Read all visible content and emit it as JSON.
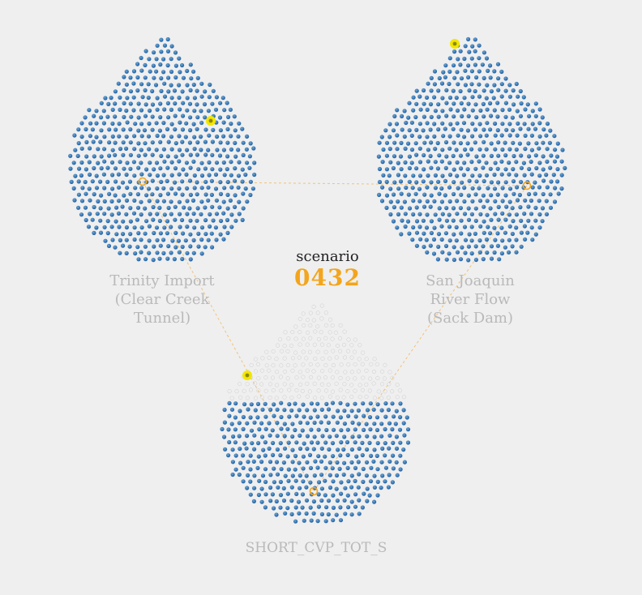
{
  "scenario": {
    "label": "scenario",
    "number": "0432"
  },
  "drops": [
    {
      "id": "trinity",
      "label": "Trinity Import\n(Clear Creek\nTunnel)",
      "filled_fraction": 1.0
    },
    {
      "id": "san-joaquin",
      "label": "San Joaquin\nRiver Flow\n(Sack Dam)",
      "filled_fraction": 1.0
    },
    {
      "id": "short-cvp",
      "label": "SHORT_CVP_TOT_S",
      "filled_fraction": 0.55
    }
  ],
  "colors": {
    "background": "#efefef",
    "dot_dark": "#1f5c9b",
    "dot_light": "#6aa6d8",
    "dot_empty": "#d8d8d8",
    "highlight": "#f2e600",
    "connector": "#f0c27a",
    "accent": "#f3a51d",
    "label": "#b9b9b9"
  }
}
